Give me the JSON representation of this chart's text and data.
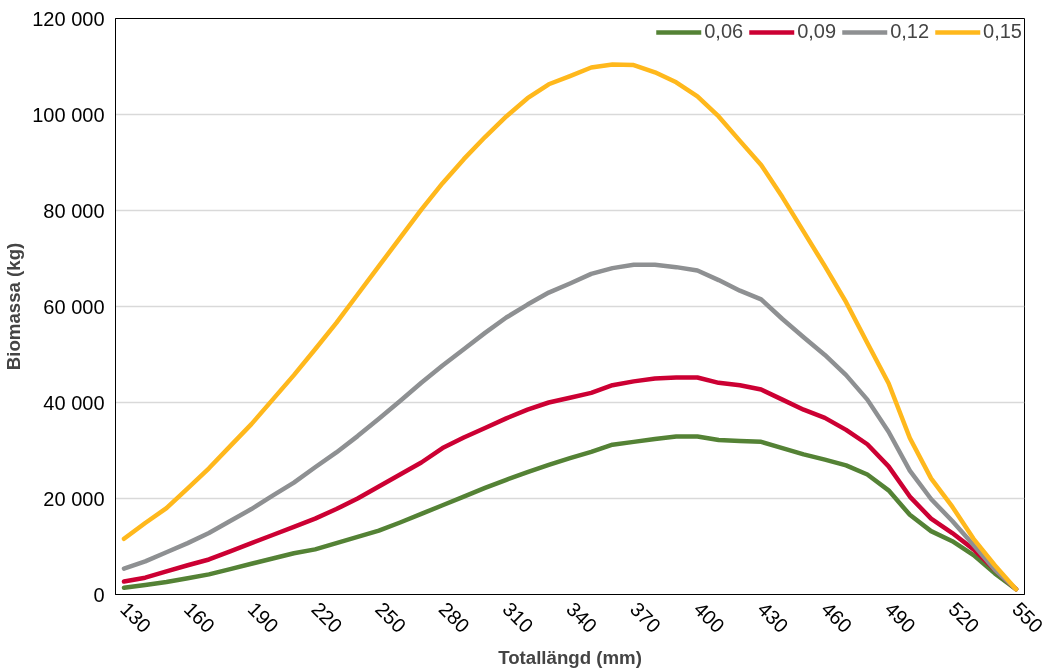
{
  "chart_data": {
    "type": "line",
    "xlabel": "Totallängd (mm)",
    "ylabel": "Biomassa (kg)",
    "x": [
      130,
      140,
      150,
      160,
      170,
      180,
      190,
      200,
      210,
      220,
      230,
      240,
      250,
      260,
      270,
      280,
      290,
      300,
      310,
      320,
      330,
      340,
      350,
      360,
      370,
      380,
      390,
      400,
      410,
      420,
      430,
      440,
      450,
      460,
      470,
      480,
      490,
      500,
      510,
      520,
      530,
      540,
      550
    ],
    "xlim": [
      126,
      554
    ],
    "ylim": [
      0,
      120000
    ],
    "xticks": [
      130,
      160,
      190,
      220,
      250,
      280,
      310,
      340,
      370,
      400,
      430,
      460,
      490,
      520,
      550
    ],
    "yticks": [
      0,
      {
        "value": 20000,
        "label": "20 000"
      },
      {
        "value": 40000,
        "label": "40 000"
      },
      {
        "value": 60000,
        "label": "60 000"
      },
      {
        "value": 80000,
        "label": "80 000"
      },
      {
        "value": 100000,
        "label": "100 000"
      },
      {
        "value": 120000,
        "label": "120 000"
      }
    ],
    "grid": "y",
    "legend": "top right",
    "marker": "none",
    "line_style": "solid",
    "series": [
      {
        "name": "0,06",
        "color": "#548235",
        "values": [
          1400,
          2000,
          2600,
          3400,
          4200,
          5300,
          6400,
          7500,
          8600,
          9400,
          10700,
          12000,
          13300,
          15000,
          16800,
          18600,
          20400,
          22200,
          23900,
          25500,
          27000,
          28400,
          29700,
          31200,
          31800,
          32400,
          32900,
          32900,
          32200,
          32000,
          31800,
          30500,
          29200,
          28100,
          26900,
          25000,
          21700,
          16600,
          13200,
          11100,
          8200,
          4400,
          1100
        ]
      },
      {
        "name": "0,09",
        "color": "#cc0033",
        "values": [
          2700,
          3500,
          4800,
          6100,
          7300,
          9000,
          10700,
          12400,
          14100,
          15800,
          17800,
          20000,
          22500,
          25000,
          27500,
          30500,
          32700,
          34700,
          36700,
          38500,
          40000,
          41000,
          42000,
          43600,
          44400,
          45000,
          45200,
          45200,
          44100,
          43600,
          42700,
          40600,
          38500,
          36800,
          34300,
          31300,
          26700,
          20400,
          15800,
          12800,
          9400,
          5200,
          1100
        ]
      },
      {
        "name": "0,12",
        "color": "#8e9092",
        "values": [
          5400,
          6900,
          8800,
          10700,
          12800,
          15300,
          17800,
          20600,
          23300,
          26500,
          29600,
          33000,
          36600,
          40300,
          44100,
          47700,
          51100,
          54500,
          57700,
          60400,
          62900,
          64800,
          66800,
          68000,
          68700,
          68700,
          68200,
          67500,
          65500,
          63300,
          61500,
          57400,
          53600,
          49900,
          45700,
          40600,
          33900,
          25800,
          19900,
          15300,
          10300,
          5200,
          1100
        ]
      },
      {
        "name": "0,15",
        "color": "#ffb81c",
        "values": [
          11600,
          14900,
          18000,
          22100,
          26300,
          30900,
          35500,
          40600,
          45700,
          51100,
          56600,
          62500,
          68400,
          74300,
          80200,
          85700,
          90700,
          95300,
          99600,
          103400,
          106300,
          108000,
          109800,
          110400,
          110300,
          108800,
          106700,
          103800,
          99600,
          94500,
          89500,
          82800,
          75600,
          68400,
          60900,
          52400,
          44000,
          32600,
          24200,
          18300,
          11600,
          6100,
          1100
        ]
      }
    ]
  }
}
